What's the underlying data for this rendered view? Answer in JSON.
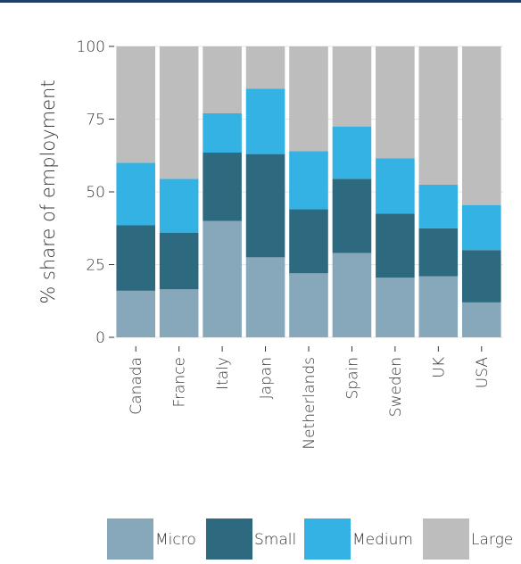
{
  "chart_data": {
    "type": "bar",
    "stacked": true,
    "title": "",
    "xlabel": "",
    "ylabel": "% share of employment",
    "ylim": [
      0,
      100
    ],
    "yticks": [
      0,
      25,
      50,
      75,
      100
    ],
    "grid": true,
    "legend_position": "bottom",
    "categories": [
      "Canada",
      "France",
      "Italy",
      "Japan",
      "Netherlands",
      "Spain",
      "Sweden",
      "UK",
      "USA"
    ],
    "series": [
      {
        "name": "Micro",
        "color": "#86a8ba",
        "values": [
          16,
          16.5,
          40,
          27.5,
          22,
          29,
          20.5,
          21,
          12
        ]
      },
      {
        "name": "Small",
        "color": "#2d6a80",
        "values": [
          22.5,
          19.5,
          23.5,
          35.5,
          22,
          25.5,
          22,
          16.5,
          18
        ]
      },
      {
        "name": "Medium",
        "color": "#33b2e3",
        "values": [
          21.5,
          18.5,
          13.5,
          22.5,
          20,
          18,
          19,
          15,
          15.5
        ]
      },
      {
        "name": "Large",
        "color": "#bdbdbd",
        "values": [
          40,
          45.5,
          23,
          14.5,
          36,
          27.5,
          38.5,
          47.5,
          54.5
        ]
      }
    ]
  }
}
